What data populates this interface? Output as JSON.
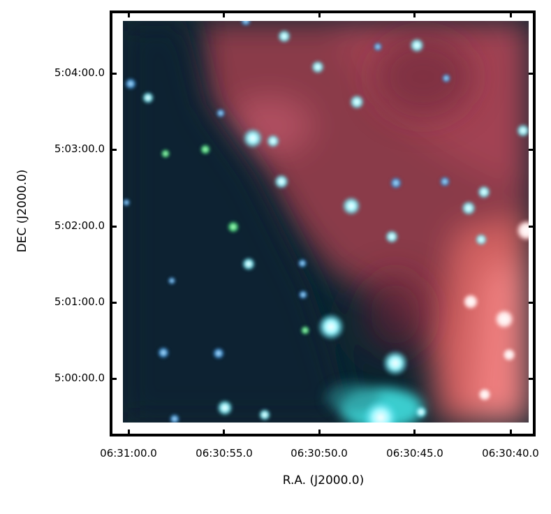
{
  "figure": {
    "xlabel": "R.A. (J2000.0)",
    "ylabel": "DEC (J2000.0)",
    "x_ticks": [
      "06:31:00.0",
      "06:30:55.0",
      "06:30:50.0",
      "06:30:45.0",
      "06:30:40.0"
    ],
    "y_ticks": [
      "5:04:00.0",
      "5:03:00.0",
      "5:02:00.0",
      "5:01:00.0",
      "5:00:00.0"
    ],
    "colors": {
      "frame": "#000000",
      "background_dark": "#0b2530",
      "nebula_red": "#b04a55",
      "star_cyan": "#5ff0f0"
    }
  }
}
